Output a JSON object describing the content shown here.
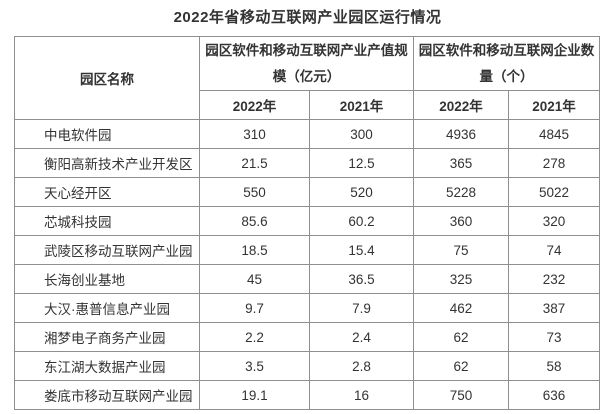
{
  "title": "2022年省移动互联网产业园区运行情况",
  "headers": {
    "park_name": "园区名称",
    "group_output": "园区软件和移动互联网产业产值规模（亿元）",
    "group_companies": "园区软件和移动互联网企业数量（个）",
    "years": [
      "2022年",
      "2021年",
      "2022年",
      "2021年"
    ]
  },
  "rows": [
    {
      "name": "中电软件园",
      "values": [
        "310",
        "300",
        "4936",
        "4845"
      ]
    },
    {
      "name": "衡阳高新技术产业开发区",
      "values": [
        "21.5",
        "12.5",
        "365",
        "278"
      ]
    },
    {
      "name": "天心经开区",
      "values": [
        "550",
        "520",
        "5228",
        "5022"
      ]
    },
    {
      "name": "芯城科技园",
      "values": [
        "85.6",
        "60.2",
        "360",
        "320"
      ]
    },
    {
      "name": "武陵区移动互联网产业园",
      "values": [
        "18.5",
        "15.4",
        "75",
        "74"
      ]
    },
    {
      "name": "长海创业基地",
      "values": [
        "45",
        "36.5",
        "325",
        "232"
      ]
    },
    {
      "name": "大汉·惠普信息产业园",
      "values": [
        "9.7",
        "7.9",
        "462",
        "387"
      ]
    },
    {
      "name": "湘梦电子商务产业园",
      "values": [
        "2.2",
        "2.4",
        "62",
        "73"
      ]
    },
    {
      "name": "东江湖大数据产业园",
      "values": [
        "3.5",
        "2.8",
        "62",
        "58"
      ]
    },
    {
      "name": "娄底市移动互联网产业园",
      "values": [
        "19.1",
        "16",
        "750",
        "636"
      ]
    }
  ],
  "colors": {
    "text": "#333333",
    "border": "#8f8f8f",
    "background": "#ffffff"
  }
}
